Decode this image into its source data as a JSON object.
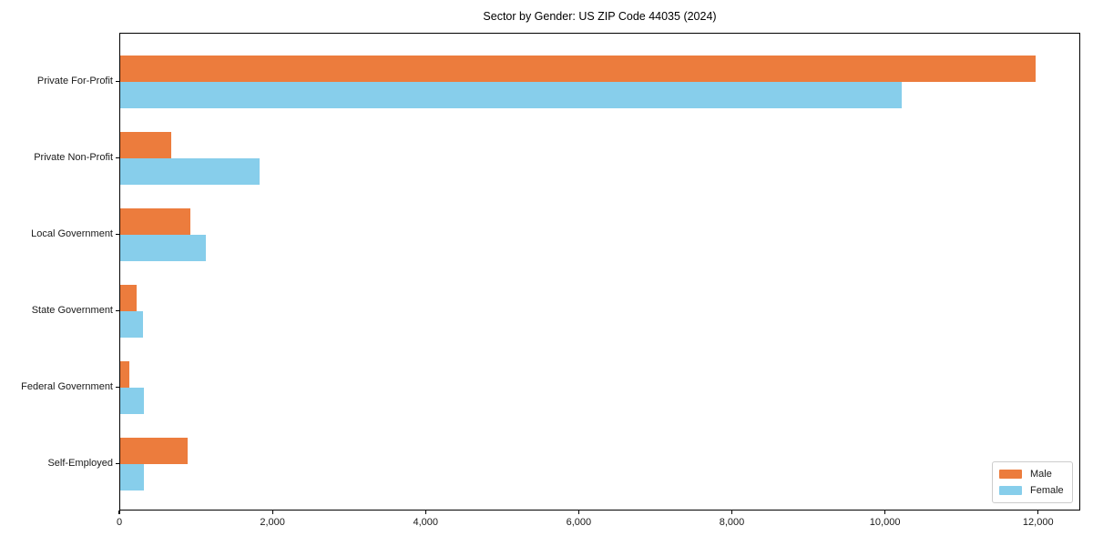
{
  "page": {
    "background": "#ffffff"
  },
  "chart_data": {
    "type": "bar",
    "orientation": "horizontal",
    "title": "Sector by Gender: US ZIP Code 44035 (2024)",
    "categories": [
      "Private For-Profit",
      "Private Non-Profit",
      "Local Government",
      "State Government",
      "Federal Government",
      "Self-Employed"
    ],
    "series": [
      {
        "name": "Male",
        "color": "#ec7c3d",
        "values": [
          11950,
          660,
          920,
          210,
          120,
          880
        ]
      },
      {
        "name": "Female",
        "color": "#87ceeb",
        "values": [
          10200,
          1820,
          1120,
          300,
          310,
          310
        ]
      }
    ],
    "xlabel": "",
    "ylabel": "",
    "xlim": [
      0,
      12550
    ],
    "xticks": [
      0,
      2000,
      4000,
      6000,
      8000,
      10000,
      12000
    ],
    "xtick_labels": [
      "0",
      "2,000",
      "4,000",
      "6,000",
      "8,000",
      "10,000",
      "12,000"
    ],
    "grid": false,
    "legend_position": "lower right",
    "bar_height_fraction": 0.35
  }
}
